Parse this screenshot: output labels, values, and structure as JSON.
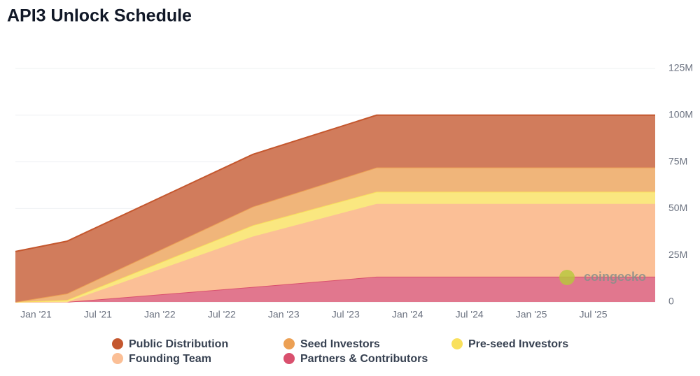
{
  "chart_data": {
    "type": "stacked-area",
    "title": "API3 Unlock Schedule",
    "watermark": "coingecko",
    "x": [
      "2020-11",
      "2021-04",
      "2022-10",
      "2023-10",
      "2026-01"
    ],
    "series": [
      {
        "name": "Partners & Contributors",
        "color": "#d9506e",
        "values": [
          0,
          0,
          8000000,
          13500000,
          13500000
        ]
      },
      {
        "name": "Founding Team",
        "color": "#fbbf96",
        "values": [
          0,
          0,
          27000000,
          39000000,
          39000000
        ]
      },
      {
        "name": "Pre-seed Investors",
        "color": "#f9e05c",
        "values": [
          0,
          1000000,
          6000000,
          6500000,
          6500000
        ]
      },
      {
        "name": "Seed Investors",
        "color": "#eca054",
        "values": [
          0,
          3500000,
          10000000,
          13000000,
          13000000
        ]
      },
      {
        "name": "Public Distribution",
        "color": "#c4572e",
        "values": [
          27000000,
          28000000,
          28000000,
          28000000,
          28000000
        ]
      }
    ],
    "xlim": [
      "2020-11",
      "2026-01"
    ],
    "xticks": [
      {
        "value": "2021-01",
        "label": "Jan '21"
      },
      {
        "value": "2021-07",
        "label": "Jul '21"
      },
      {
        "value": "2022-01",
        "label": "Jan '22"
      },
      {
        "value": "2022-07",
        "label": "Jul '22"
      },
      {
        "value": "2023-01",
        "label": "Jan '23"
      },
      {
        "value": "2023-07",
        "label": "Jul '23"
      },
      {
        "value": "2024-01",
        "label": "Jan '24"
      },
      {
        "value": "2024-07",
        "label": "Jul '24"
      },
      {
        "value": "2025-01",
        "label": "Jan '25"
      },
      {
        "value": "2025-07",
        "label": "Jul '25"
      }
    ],
    "ylim": [
      0,
      125000000
    ],
    "yticks": [
      0,
      {
        "value": 25000000,
        "label": "25M"
      },
      {
        "value": 50000000,
        "label": "50M"
      },
      {
        "value": 75000000,
        "label": "75M"
      },
      {
        "value": 100000000,
        "label": "100M"
      },
      {
        "value": 125000000,
        "label": "125M"
      }
    ],
    "grid": true
  }
}
